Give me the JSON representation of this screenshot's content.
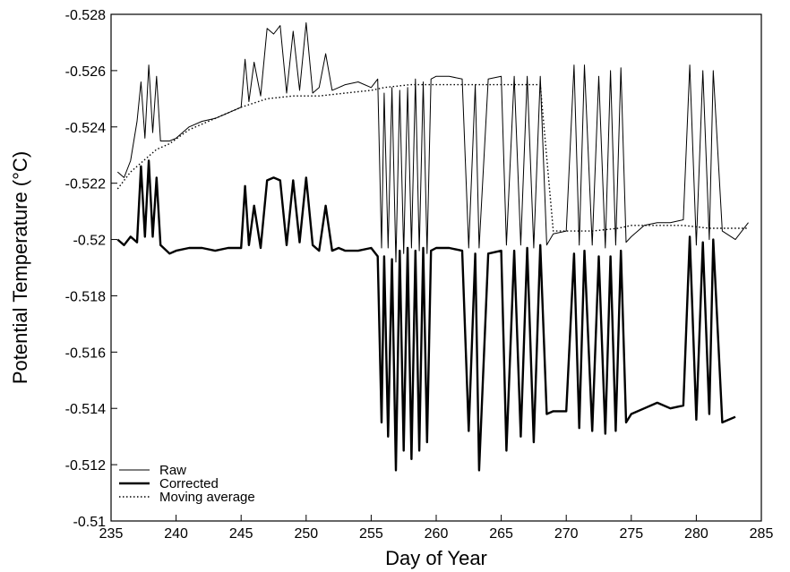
{
  "chart_data": {
    "type": "line",
    "title": "",
    "xlabel": "Day of Year",
    "ylabel": "Potential Temperature (°C)",
    "xlim": [
      235,
      285
    ],
    "ylim": [
      -0.51,
      -0.528
    ],
    "y_axis_inverted": true,
    "grid": false,
    "legend_position": "bottom-left",
    "x_ticks": [
      235,
      240,
      245,
      250,
      255,
      260,
      265,
      270,
      275,
      280,
      285
    ],
    "x_tick_labels": [
      "235",
      "240",
      "245",
      "250",
      "255",
      "260",
      "265",
      "270",
      "275",
      "280",
      "285"
    ],
    "y_ticks": [
      -0.528,
      -0.526,
      -0.524,
      -0.522,
      -0.52,
      -0.518,
      -0.516,
      -0.514,
      -0.512,
      -0.51
    ],
    "y_tick_labels": [
      "-0.528",
      "-0.526",
      "-0.524",
      "-0.522",
      "-0.52",
      "-0.518",
      "-0.516",
      "-0.514",
      "-0.512",
      "-0.51"
    ],
    "series": [
      {
        "name": "Raw",
        "style": "thin",
        "x": [
          235.5,
          236.0,
          236.5,
          237.0,
          237.3,
          237.6,
          237.9,
          238.2,
          238.5,
          238.8,
          239.5,
          240.0,
          241.0,
          242.0,
          243.0,
          244.0,
          245.0,
          245.3,
          245.6,
          246.0,
          246.5,
          247.0,
          247.5,
          248.0,
          248.5,
          249.0,
          249.5,
          250.0,
          250.5,
          251.0,
          251.5,
          252.0,
          252.5,
          253.0,
          254.0,
          255.0,
          255.5,
          255.8,
          256.0,
          256.3,
          256.6,
          256.9,
          257.2,
          257.5,
          257.8,
          258.1,
          258.4,
          258.7,
          259.0,
          259.3,
          259.6,
          260.0,
          261.0,
          262.0,
          262.5,
          263.0,
          263.3,
          264.0,
          265.0,
          265.4,
          266.0,
          266.5,
          267.0,
          267.5,
          268.0,
          268.5,
          269.0,
          270.0,
          270.6,
          271.0,
          271.4,
          272.0,
          272.5,
          273.0,
          273.4,
          273.8,
          274.2,
          274.6,
          275.0,
          276.0,
          277.0,
          278.0,
          279.0,
          279.5,
          280.0,
          280.5,
          281.0,
          281.3,
          282.0,
          283.0,
          284.0
        ],
        "y": [
          -0.5224,
          -0.5222,
          -0.5228,
          -0.5242,
          -0.5256,
          -0.5236,
          -0.5262,
          -0.5238,
          -0.5258,
          -0.5235,
          -0.5235,
          -0.5236,
          -0.524,
          -0.5242,
          -0.5243,
          -0.5245,
          -0.5247,
          -0.5264,
          -0.5249,
          -0.5263,
          -0.5251,
          -0.5275,
          -0.5273,
          -0.5276,
          -0.5252,
          -0.5274,
          -0.5253,
          -0.5277,
          -0.5252,
          -0.5254,
          -0.5266,
          -0.5253,
          -0.5254,
          -0.5255,
          -0.5256,
          -0.5254,
          -0.5257,
          -0.5197,
          -0.5252,
          -0.5197,
          -0.5254,
          -0.5192,
          -0.5253,
          -0.5195,
          -0.5254,
          -0.5197,
          -0.5257,
          -0.5196,
          -0.5256,
          -0.5195,
          -0.5257,
          -0.5258,
          -0.5258,
          -0.5257,
          -0.5197,
          -0.5255,
          -0.5197,
          -0.5257,
          -0.5258,
          -0.5198,
          -0.5258,
          -0.5198,
          -0.5258,
          -0.5197,
          -0.5258,
          -0.5198,
          -0.5202,
          -0.5203,
          -0.5262,
          -0.5198,
          -0.5262,
          -0.5198,
          -0.5258,
          -0.5197,
          -0.526,
          -0.5198,
          -0.5261,
          -0.5199,
          -0.5201,
          -0.5205,
          -0.5206,
          -0.5206,
          -0.5207,
          -0.5262,
          -0.5198,
          -0.526,
          -0.52,
          -0.526,
          -0.5203,
          -0.52,
          -0.5206
        ]
      },
      {
        "name": "Corrected",
        "style": "thick",
        "x": [
          235.5,
          236.0,
          236.5,
          237.0,
          237.3,
          237.6,
          237.9,
          238.2,
          238.5,
          238.8,
          239.5,
          240.0,
          241.0,
          242.0,
          243.0,
          244.0,
          245.0,
          245.3,
          245.6,
          246.0,
          246.5,
          247.0,
          247.5,
          248.0,
          248.5,
          249.0,
          249.5,
          250.0,
          250.5,
          251.0,
          251.5,
          252.0,
          252.5,
          253.0,
          254.0,
          255.0,
          255.5,
          255.8,
          256.0,
          256.3,
          256.6,
          256.9,
          257.2,
          257.5,
          257.8,
          258.1,
          258.4,
          258.7,
          259.0,
          259.3,
          259.6,
          260.0,
          261.0,
          262.0,
          262.5,
          263.0,
          263.3,
          264.0,
          265.0,
          265.4,
          266.0,
          266.5,
          267.0,
          267.5,
          268.0,
          268.5,
          269.0,
          270.0,
          270.6,
          271.0,
          271.4,
          272.0,
          272.5,
          273.0,
          273.4,
          273.8,
          274.2,
          274.6,
          275.0,
          276.0,
          277.0,
          278.0,
          279.0,
          279.5,
          280.0,
          280.5,
          281.0,
          281.3,
          282.0,
          283.0
        ],
        "y": [
          -0.52,
          -0.5198,
          -0.5201,
          -0.5199,
          -0.5226,
          -0.5201,
          -0.5228,
          -0.5201,
          -0.5222,
          -0.5198,
          -0.5195,
          -0.5196,
          -0.5197,
          -0.5197,
          -0.5196,
          -0.5197,
          -0.5197,
          -0.5219,
          -0.5198,
          -0.5212,
          -0.5197,
          -0.5221,
          -0.5222,
          -0.5221,
          -0.5198,
          -0.5221,
          -0.5199,
          -0.5222,
          -0.5198,
          -0.5196,
          -0.5212,
          -0.5196,
          -0.5197,
          -0.5196,
          -0.5196,
          -0.5197,
          -0.5194,
          -0.5135,
          -0.5194,
          -0.513,
          -0.5193,
          -0.5118,
          -0.5196,
          -0.5125,
          -0.5197,
          -0.5122,
          -0.5196,
          -0.5125,
          -0.5197,
          -0.5128,
          -0.5196,
          -0.5197,
          -0.5197,
          -0.5196,
          -0.5132,
          -0.5195,
          -0.5118,
          -0.5195,
          -0.5196,
          -0.5125,
          -0.5196,
          -0.513,
          -0.5197,
          -0.5128,
          -0.5198,
          -0.5138,
          -0.5139,
          -0.5139,
          -0.5195,
          -0.5133,
          -0.5196,
          -0.5132,
          -0.5194,
          -0.5131,
          -0.5194,
          -0.5132,
          -0.5196,
          -0.5135,
          -0.5138,
          -0.514,
          -0.5142,
          -0.514,
          -0.5141,
          -0.5201,
          -0.5136,
          -0.5199,
          -0.5138,
          -0.52,
          -0.5135,
          -0.5137
        ]
      },
      {
        "name": "Moving average",
        "style": "dotted",
        "x": [
          235.5,
          236.5,
          237.5,
          238.5,
          239.5,
          241.0,
          243.0,
          245.0,
          247.0,
          249.0,
          251.0,
          253.0,
          255.0,
          256.0,
          258.0,
          260.0,
          263.0,
          266.0,
          268.0,
          269.0,
          270.0,
          272.0,
          274.0,
          275.0,
          277.0,
          279.0,
          281.0,
          283.0,
          284.0
        ],
        "y": [
          -0.5218,
          -0.5224,
          -0.5228,
          -0.5232,
          -0.5234,
          -0.5239,
          -0.5243,
          -0.5247,
          -0.525,
          -0.5251,
          -0.5251,
          -0.5252,
          -0.5253,
          -0.5254,
          -0.5255,
          -0.5255,
          -0.5255,
          -0.5255,
          -0.5255,
          -0.5203,
          -0.5203,
          -0.5203,
          -0.5204,
          -0.5205,
          -0.5205,
          -0.5205,
          -0.5204,
          -0.5204,
          -0.5204
        ]
      }
    ]
  }
}
